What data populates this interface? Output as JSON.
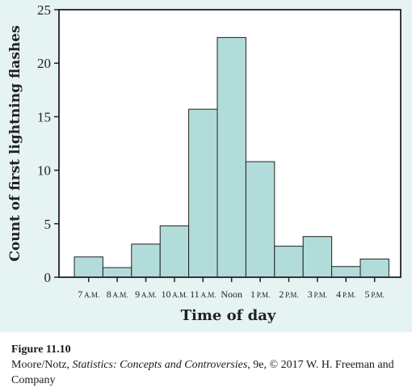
{
  "chart_data": {
    "type": "bar",
    "title": "",
    "xlabel": "Time of day",
    "ylabel": "Count of first lightning flashes",
    "ylim": [
      0,
      25
    ],
    "yticks": [
      0,
      5,
      10,
      15,
      20,
      25
    ],
    "categories": [
      {
        "main": "7",
        "ampm": "A.M."
      },
      {
        "main": "8",
        "ampm": "A.M."
      },
      {
        "main": "9",
        "ampm": "A.M."
      },
      {
        "main": "10",
        "ampm": "A.M."
      },
      {
        "main": "11",
        "ampm": "A.M."
      },
      {
        "main": "Noon",
        "ampm": ""
      },
      {
        "main": "1",
        "ampm": "P.M."
      },
      {
        "main": "2",
        "ampm": "P.M."
      },
      {
        "main": "3",
        "ampm": "P.M."
      },
      {
        "main": "4",
        "ampm": "P.M."
      },
      {
        "main": "5",
        "ampm": "P.M."
      }
    ],
    "values": [
      1.9,
      0.9,
      3.1,
      4.8,
      15.7,
      22.4,
      10.8,
      2.9,
      3.8,
      1.0,
      1.7
    ],
    "bar_color": "#b1dcda",
    "grid": false
  },
  "caption": {
    "label": "Figure 11.10",
    "authors": "Moore/Notz, ",
    "book": "Statistics: Concepts and Controversies",
    "rest": ", 9e, © 2017 W. H. Freeman and Company"
  }
}
